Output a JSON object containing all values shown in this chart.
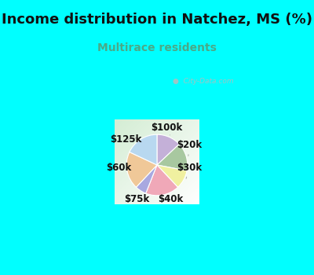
{
  "title": "Income distribution in Natchez, MS (%)",
  "subtitle": "Multirace residents",
  "title_color": "#111111",
  "subtitle_color": "#4aaa88",
  "background_outer": "#00ffff",
  "labels": [
    "$100k",
    "$20k",
    "$30k",
    "$40k",
    "$75k",
    "$60k",
    "$125k"
  ],
  "sizes": [
    13,
    15,
    10,
    18,
    6,
    20,
    18
  ],
  "colors": [
    "#c4b0d8",
    "#a8c8a0",
    "#f0f0a0",
    "#f0a8b8",
    "#a8a8e0",
    "#f0c898",
    "#b8d8f0"
  ],
  "startangle": 90,
  "label_fontsize": 8.5,
  "title_fontsize": 13,
  "subtitle_fontsize": 10,
  "watermark": "City-Data.com",
  "chart_bg_left": "#d4edd4",
  "chart_bg_right": "#e8f4f4"
}
